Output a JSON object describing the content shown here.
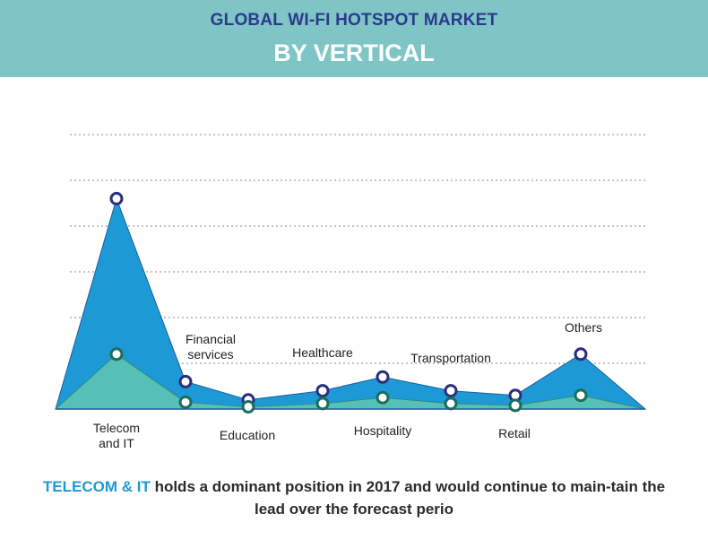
{
  "header": {
    "title": "GLOBAL WI-FI HOTSPOT MARKET",
    "subtitle": "BY VERTICAL"
  },
  "chart_data": {
    "type": "area",
    "categories": [
      "Telecom and IT",
      "Financial services",
      "Education",
      "Healthcare",
      "Hospitality",
      "Transportation",
      "Retail",
      "Others"
    ],
    "category_labels": [
      [
        "Telecom",
        "and IT"
      ],
      [
        "Financial",
        "services"
      ],
      [
        "Education"
      ],
      [
        "Healthcare"
      ],
      [
        "Hospitality"
      ],
      [
        "Transportation"
      ],
      [
        "Retail"
      ],
      [
        "Others"
      ]
    ],
    "series": [
      {
        "values": [
          4.6,
          0.6,
          0.2,
          0.4,
          0.7,
          0.4,
          0.3,
          1.2
        ]
      },
      {
        "values": [
          1.2,
          0.15,
          0.05,
          0.12,
          0.25,
          0.12,
          0.08,
          0.3
        ]
      }
    ],
    "ylim": [
      0,
      6
    ],
    "grid": true,
    "colors": {
      "series_fill": [
        "#1d9ad6",
        "#56bfb6"
      ],
      "series_edge": [
        "#1b5c9e",
        "#2e8d80"
      ],
      "marker_stroke": [
        "#2b2e7d",
        "#1a6e5c"
      ]
    }
  },
  "footer": {
    "highlight": "TELECOM & IT",
    "text": " holds a dominant position in 2017 and would continue to main-tain the lead over the forecast perio"
  }
}
